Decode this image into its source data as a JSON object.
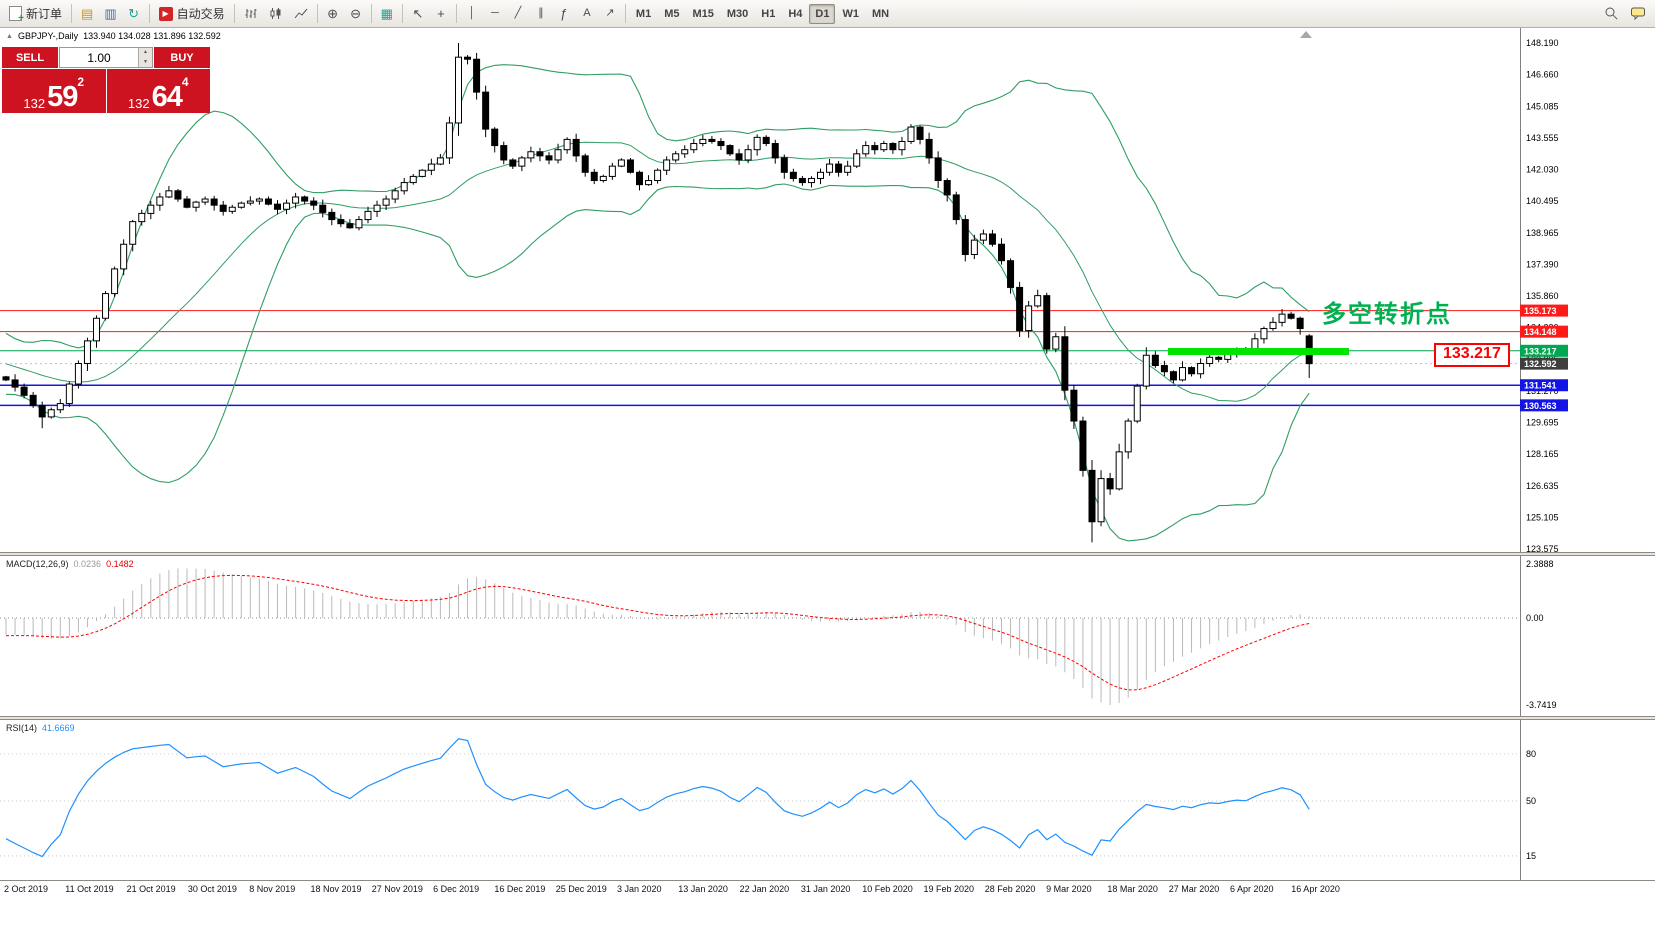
{
  "toolbar": {
    "new_order_label": "新订单",
    "autotrade_label": "自动交易",
    "timeframes": [
      "M1",
      "M5",
      "M15",
      "M30",
      "H1",
      "H4",
      "D1",
      "W1",
      "MN"
    ],
    "active_timeframe": "D1",
    "icons": {
      "market_watch": "▤",
      "data_window": "▥",
      "navigator": "↻",
      "autotrade_play": "▶",
      "zoom_in": "⊕",
      "zoom_out": "⊖",
      "tile_windows": "▦",
      "cursor": "↖",
      "crosshair": "+",
      "vertical_line": "│",
      "horizontal_line": "─",
      "trendline": "╱",
      "channel": "∥",
      "fibonacci": "ƒ",
      "text_tool": "A",
      "arrow_tool": "↗",
      "spin_up": "▲",
      "spin_dn": "▼"
    }
  },
  "trade_panel": {
    "sell_label": "SELL",
    "buy_label": "BUY",
    "volume": "1.00",
    "sell_price": {
      "big": "132",
      "pips": "59",
      "sup": "2"
    },
    "buy_price": {
      "big": "132",
      "pips": "64",
      "sup": "4"
    }
  },
  "chart": {
    "symbol_title": "GBPJPY-,Daily",
    "ohlc_text": "133.940 134.028 131.896 132.592",
    "collapse_marker": "▲",
    "annotation": "多空转折点",
    "callout_label": "133.217",
    "price_scale": [
      "148.190",
      "146.660",
      "145.085",
      "143.555",
      "142.030",
      "140.495",
      "138.965",
      "137.390",
      "135.860",
      "134.330",
      "132.805",
      "131.270",
      "129.695",
      "128.165",
      "126.635",
      "125.105",
      "123.575"
    ],
    "lines": [
      {
        "value": 135.173,
        "label": "135.173",
        "color": "#ff1a1a",
        "width": 1
      },
      {
        "value": 134.148,
        "label": "134.148",
        "color": "#ff1a1a",
        "width": 1
      },
      {
        "value": 133.217,
        "label": "133.217",
        "color": "#00a651",
        "width": 1
      },
      {
        "value": 131.541,
        "label": "131.541",
        "color": "#1414e6",
        "width": 1.5
      },
      {
        "value": 130.563,
        "label": "130.563",
        "color": "#1414e6",
        "width": 1.5
      }
    ],
    "current_price": {
      "value": 132.592,
      "label": "132.592",
      "color": "#3f3f3f"
    }
  },
  "macd": {
    "name": "MACD(12,26,9)",
    "value_main": "0.0236",
    "value_signal": "0.1482",
    "scale_top": "2.3888",
    "scale_zero": "0.00",
    "scale_bottom": "-3.7419"
  },
  "rsi": {
    "name": "RSI(14)",
    "value": "41.6669",
    "levels": [
      "80",
      "50",
      "15"
    ]
  },
  "chart_data": {
    "type": "candlestick",
    "title": "GBPJPY Daily",
    "x_labels": [
      "2 Oct 2019",
      "11 Oct 2019",
      "21 Oct 2019",
      "30 Oct 2019",
      "8 Nov 2019",
      "18 Nov 2019",
      "27 Nov 2019",
      "6 Dec 2019",
      "16 Dec 2019",
      "25 Dec 2019",
      "3 Jan 2020",
      "13 Jan 2020",
      "22 Jan 2020",
      "31 Jan 2020",
      "10 Feb 2020",
      "19 Feb 2020",
      "28 Feb 2020",
      "9 Mar 2020",
      "18 Mar 2020",
      "27 Mar 2020",
      "6 Apr 2020",
      "16 Apr 2020"
    ],
    "y_range": [
      123.575,
      148.19
    ],
    "closes": [
      131.8,
      131.45,
      131.05,
      130.55,
      130.0,
      130.35,
      130.65,
      131.6,
      132.6,
      133.7,
      134.8,
      136.0,
      137.2,
      138.4,
      139.5,
      139.9,
      140.3,
      140.7,
      141.0,
      140.6,
      140.2,
      140.45,
      140.6,
      140.3,
      140.0,
      140.2,
      140.4,
      140.5,
      140.6,
      140.35,
      140.1,
      140.4,
      140.7,
      140.5,
      140.3,
      139.95,
      139.6,
      139.4,
      139.2,
      139.6,
      140.0,
      140.3,
      140.6,
      141.0,
      141.4,
      141.7,
      142.0,
      142.3,
      142.6,
      144.3,
      147.5,
      147.4,
      145.8,
      144.0,
      143.2,
      142.5,
      142.2,
      142.6,
      142.9,
      142.7,
      142.5,
      143.0,
      143.5,
      142.7,
      141.9,
      141.5,
      141.7,
      142.2,
      142.5,
      141.9,
      141.3,
      141.5,
      142.0,
      142.5,
      142.8,
      143.0,
      143.3,
      143.5,
      143.4,
      143.2,
      142.8,
      142.5,
      143.0,
      143.6,
      143.3,
      142.6,
      141.9,
      141.6,
      141.4,
      141.6,
      141.9,
      142.3,
      141.9,
      142.2,
      142.8,
      143.2,
      143.0,
      143.3,
      143.0,
      143.4,
      144.1,
      143.5,
      142.6,
      141.5,
      140.8,
      139.6,
      137.9,
      138.6,
      138.9,
      138.4,
      137.6,
      136.3,
      134.2,
      135.4,
      135.9,
      133.3,
      133.9,
      131.3,
      129.8,
      127.4,
      124.9,
      127.0,
      126.5,
      128.3,
      129.8,
      131.5,
      133.0,
      132.5,
      132.2,
      131.8,
      132.4,
      132.1,
      132.6,
      132.9,
      132.8,
      133.1,
      133.3,
      133.2,
      133.8,
      134.3,
      134.6,
      135.0,
      134.8,
      134.3,
      132.592
    ],
    "candle_overrides": {
      "4": {
        "low": 129.45
      },
      "50": {
        "high": 148.19
      },
      "120": {
        "low": 123.9
      },
      "144": {
        "open": 133.94,
        "high": 134.028,
        "low": 131.896
      }
    },
    "indicators": {
      "bollinger_period": 20,
      "bollinger_dev": 2,
      "macd": [
        12,
        26,
        9
      ],
      "rsi_period": 14
    }
  }
}
